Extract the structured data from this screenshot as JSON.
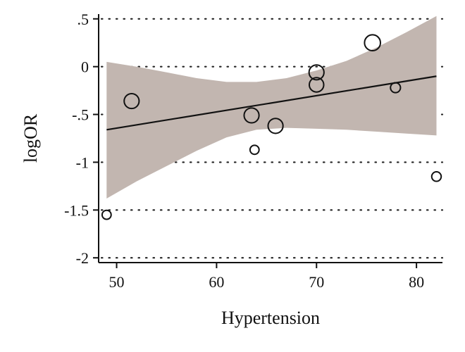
{
  "chart_data": {
    "type": "scatter",
    "title": "",
    "xlabel": "Hypertension",
    "ylabel": "logOR",
    "xlim": [
      48.2,
      82.6
    ],
    "ylim": [
      -2.05,
      0.55
    ],
    "x_ticks": [
      50,
      60,
      70,
      80
    ],
    "x_tick_labels": [
      "50",
      "60",
      "70",
      "80"
    ],
    "y_ticks": [
      0.5,
      0,
      -0.5,
      -1,
      -1.5,
      -2
    ],
    "y_tick_labels": [
      ".5",
      "0",
      "-.5",
      "-1",
      "-1.5",
      "-2"
    ],
    "grid": "horizontal-dotted",
    "points": [
      {
        "x": 49.0,
        "y": -1.55,
        "weight": 0.2
      },
      {
        "x": 51.5,
        "y": -0.36,
        "weight": 0.8
      },
      {
        "x": 63.5,
        "y": -0.51,
        "weight": 0.8
      },
      {
        "x": 63.8,
        "y": -0.87,
        "weight": 0.2
      },
      {
        "x": 65.9,
        "y": -0.62,
        "weight": 0.8
      },
      {
        "x": 70.0,
        "y": -0.06,
        "weight": 0.8
      },
      {
        "x": 70.0,
        "y": -0.19,
        "weight": 0.75
      },
      {
        "x": 75.6,
        "y": 0.25,
        "weight": 0.9
      },
      {
        "x": 77.9,
        "y": -0.22,
        "weight": 0.3
      },
      {
        "x": 82.0,
        "y": -1.15,
        "weight": 0.25
      }
    ],
    "fit_line": {
      "x": [
        49.0,
        82.0
      ],
      "y": [
        -0.66,
        -0.1
      ]
    },
    "confidence_band": {
      "x": [
        49.0,
        52.0,
        55.0,
        58.0,
        61.0,
        64.0,
        67.0,
        70.0,
        73.0,
        76.0,
        79.0,
        82.0
      ],
      "upper": [
        0.05,
        0.0,
        -0.06,
        -0.12,
        -0.16,
        -0.16,
        -0.12,
        -0.04,
        0.06,
        0.2,
        0.36,
        0.53
      ],
      "lower": [
        -1.38,
        -1.2,
        -1.04,
        -0.88,
        -0.74,
        -0.66,
        -0.64,
        -0.65,
        -0.66,
        -0.68,
        -0.7,
        -0.72
      ]
    },
    "colors": {
      "band": "#c2b6b0",
      "line": "#111111",
      "points": "#111111"
    }
  }
}
